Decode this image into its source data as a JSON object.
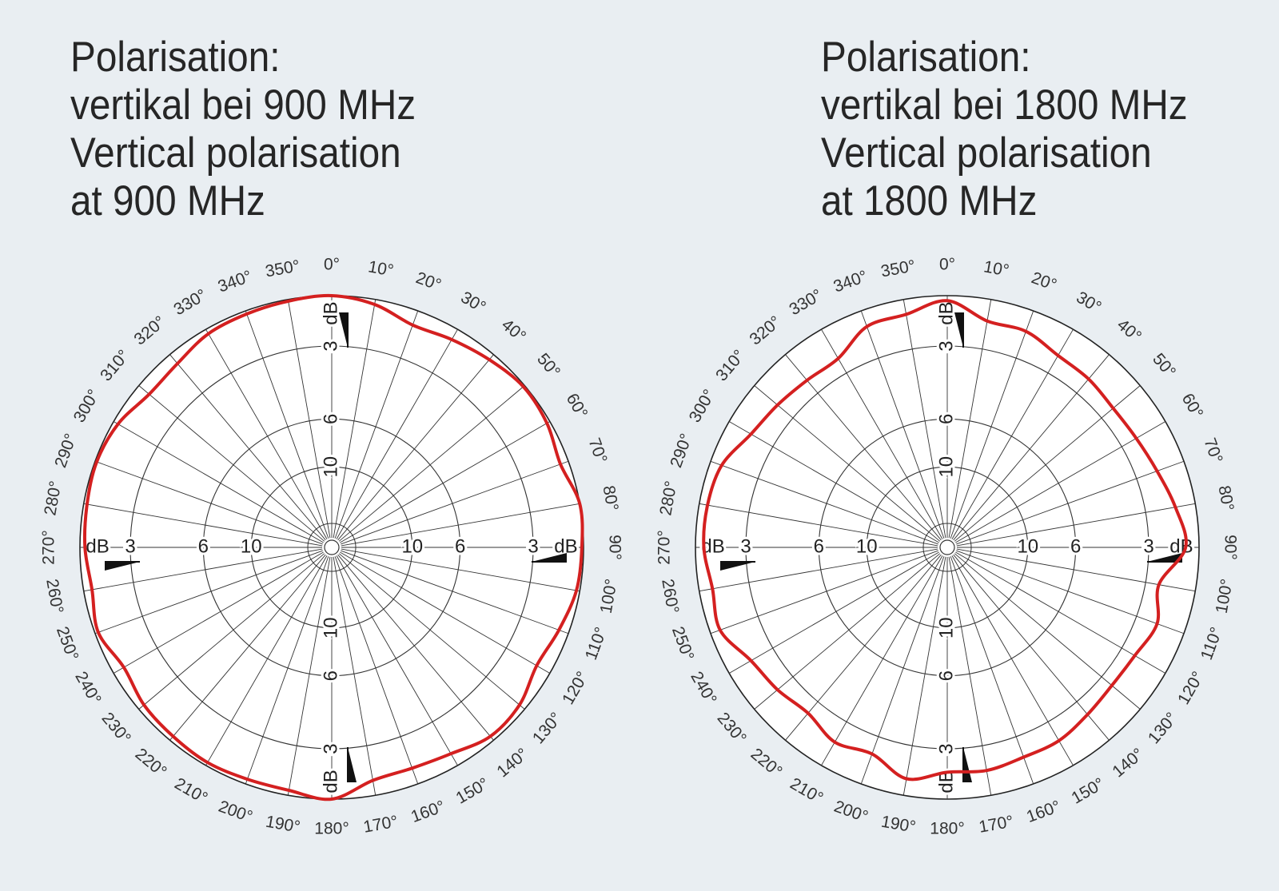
{
  "charts": [
    {
      "title_lines": [
        "Polarisation:",
        "vertikal bei 900 MHz",
        "Vertical polarisation",
        "at 900 MHz"
      ]
    },
    {
      "title_lines": [
        "Polarisation:",
        "vertikal bei 1800 MHz",
        "Vertical polarisation",
        "at 1800 MHz"
      ]
    }
  ],
  "chart_data": [
    {
      "type": "polar",
      "title": "Polarisation: vertikal bei 900 MHz / Vertical polarisation at 900 MHz",
      "angle_labels": [
        "0°",
        "10°",
        "20°",
        "30°",
        "40°",
        "50°",
        "60°",
        "70°",
        "80°",
        "90°",
        "100°",
        "110°",
        "120°",
        "130°",
        "140°",
        "150°",
        "160°",
        "170°",
        "180°",
        "190°",
        "200°",
        "210°",
        "220°",
        "230°",
        "240°",
        "250°",
        "260°",
        "270°",
        "280°",
        "290°",
        "300°",
        "310°",
        "320°",
        "330°",
        "340°",
        "350°"
      ],
      "radial_labels": [
        "dB",
        "3",
        "6",
        "10"
      ],
      "radial_unit": "dB",
      "rings_db": [
        0,
        3,
        6,
        10
      ],
      "grid": true,
      "line_color": "#d42020",
      "series": [
        {
          "angles": [
            0,
            10,
            20,
            30,
            40,
            50,
            60,
            70,
            80,
            90,
            100,
            110,
            120,
            130,
            140,
            150,
            160,
            170,
            180,
            190,
            200,
            210,
            220,
            230,
            240,
            250,
            260,
            270,
            280,
            290,
            300,
            310,
            320,
            330,
            340,
            350
          ],
          "values": [
            0,
            -0.3,
            -0.9,
            -0.7,
            -0.4,
            -0.1,
            -0.2,
            -0.5,
            0,
            -0.1,
            -0.2,
            -0.6,
            -0.9,
            -0.4,
            -0.3,
            -0.8,
            -1,
            -0.9,
            0,
            -0.3,
            -0.3,
            -0.2,
            -0.3,
            -0.4,
            -0.7,
            -0.2,
            -0.5,
            -0.3,
            -0.2,
            -0.1,
            -0.3,
            -0.8,
            -0.7,
            -0.3,
            -0.2,
            -0.1
          ]
        }
      ]
    },
    {
      "type": "polar",
      "title": "Polarisation: vertikal bei 1800 MHz / Vertical polarisation at 1800 MHz",
      "angle_labels": [
        "0°",
        "10°",
        "20°",
        "30°",
        "40°",
        "50°",
        "60°",
        "70°",
        "80°",
        "90°",
        "100°",
        "110°",
        "120°",
        "130°",
        "140°",
        "150°",
        "160°",
        "170°",
        "180°",
        "190°",
        "200°",
        "210°",
        "220°",
        "230°",
        "240°",
        "250°",
        "260°",
        "270°",
        "280°",
        "290°",
        "300°",
        "310°",
        "320°",
        "330°",
        "340°",
        "350°"
      ],
      "radial_labels": [
        "dB",
        "3",
        "6",
        "10"
      ],
      "radial_unit": "dB",
      "rings_db": [
        0,
        3,
        6,
        10
      ],
      "grid": true,
      "line_color": "#d42020",
      "series": [
        {
          "angles": [
            0,
            10,
            20,
            30,
            40,
            50,
            60,
            70,
            80,
            90,
            100,
            110,
            120,
            130,
            140,
            150,
            160,
            170,
            180,
            190,
            200,
            210,
            220,
            230,
            240,
            250,
            260,
            270,
            280,
            290,
            300,
            310,
            320,
            330,
            340,
            350
          ],
          "values": [
            -0.3,
            -1.3,
            -1.3,
            -1.8,
            -1.9,
            -2.1,
            -2.0,
            -1.7,
            -1.2,
            -0.8,
            -2.2,
            -1.7,
            -2.1,
            -2.2,
            -2.0,
            -1.7,
            -1.7,
            -1.5,
            -1.6,
            -1.0,
            -1.9,
            -1.6,
            -2.1,
            -1.8,
            -1.5,
            -0.6,
            -0.8,
            -0.5,
            -0.5,
            -0.7,
            -1.5,
            -1.8,
            -2.0,
            -2.0,
            -1.0,
            -0.9
          ]
        }
      ]
    }
  ]
}
